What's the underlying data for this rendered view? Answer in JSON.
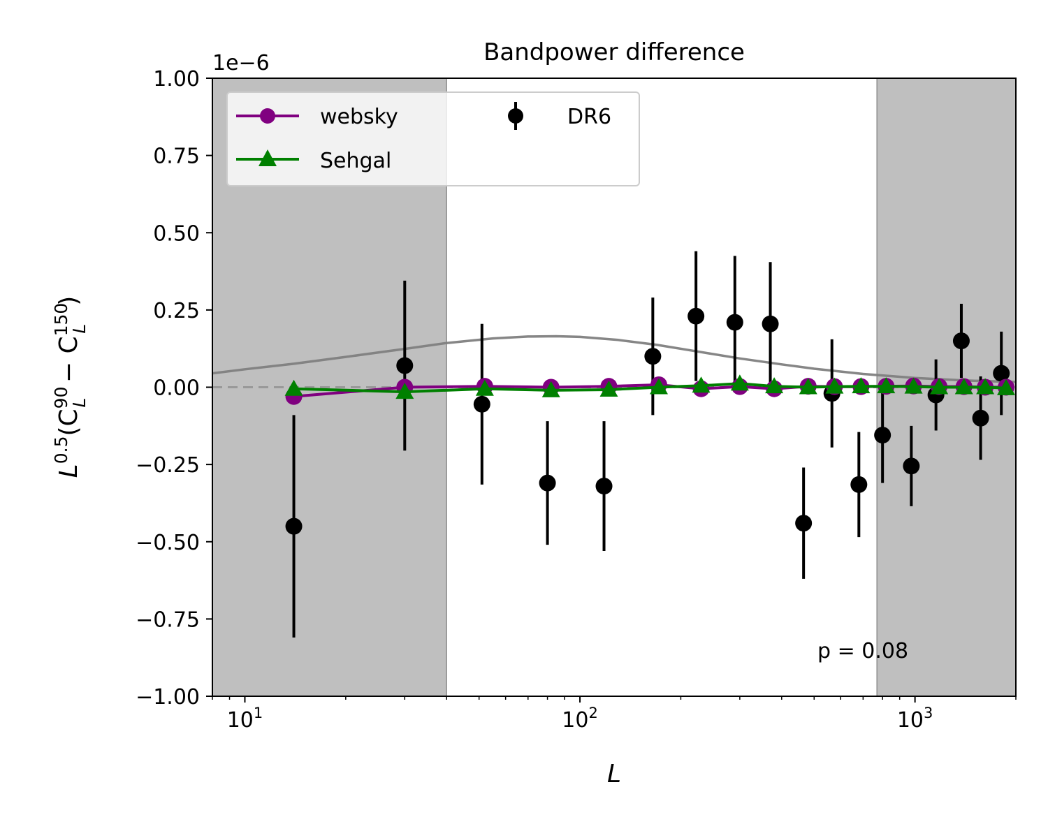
{
  "chart_data": {
    "type": "scatter",
    "title": "Bandpower difference",
    "xlabel": "L",
    "ylabel_base": "L",
    "ylabel_exp": "0.5",
    "ylabel_lhs": "(C",
    "ylabel_sup1": "90",
    "ylabel_sub": "L",
    "ylabel_minus": " − C",
    "ylabel_sup2": "150",
    "ylabel_close": ")",
    "y_offset_text": "1e−6",
    "x_scale": "log",
    "xlim": [
      8,
      2000
    ],
    "ylim": [
      -1.0,
      1.0
    ],
    "x_tick_base": "10",
    "x_ticks": [
      {
        "value": 10,
        "exp": "1"
      },
      {
        "value": 100,
        "exp": "2"
      },
      {
        "value": 1000,
        "exp": "3"
      }
    ],
    "y_ticks": [
      {
        "value": 1.0,
        "label": "1.00"
      },
      {
        "value": 0.75,
        "label": "0.75"
      },
      {
        "value": 0.5,
        "label": "0.50"
      },
      {
        "value": 0.25,
        "label": "0.25"
      },
      {
        "value": 0.0,
        "label": "0.00"
      },
      {
        "value": -0.25,
        "label": "−0.25"
      },
      {
        "value": -0.5,
        "label": "−0.50"
      },
      {
        "value": -0.75,
        "label": "−0.75"
      },
      {
        "value": -1.0,
        "label": "−1.00"
      }
    ],
    "excluded_ranges": [
      [
        8,
        40
      ],
      [
        770,
        2000
      ]
    ],
    "annotation": "p = 0.08",
    "legend_placement": "upper-left",
    "series": [
      {
        "name": "websky",
        "color": "#800080",
        "marker": "circle",
        "x": [
          14,
          30,
          52,
          82,
          122,
          172,
          230,
          300,
          380,
          480,
          575,
          690,
          820,
          990,
          1180,
          1400,
          1620,
          1870
        ],
        "y": [
          -0.03,
          0.0,
          0.003,
          0.0,
          0.003,
          0.008,
          -0.005,
          0.002,
          -0.005,
          0.003,
          0.002,
          0.002,
          0.003,
          0.004,
          0.002,
          0.002,
          0.0,
          0.0
        ]
      },
      {
        "name": "Sehgal",
        "color": "#008000",
        "marker": "triangle",
        "x": [
          14,
          30,
          52,
          82,
          122,
          172,
          230,
          300,
          380,
          480,
          575,
          690,
          820,
          990,
          1180,
          1400,
          1620,
          1870
        ],
        "y": [
          -0.005,
          -0.015,
          -0.005,
          -0.01,
          -0.008,
          0.0,
          0.005,
          0.012,
          0.003,
          0.0,
          0.002,
          0.003,
          0.003,
          0.002,
          0.0,
          0.0,
          0.0,
          -0.003
        ]
      },
      {
        "name": "DR6",
        "color": "#000000",
        "marker": "errorbar",
        "x": [
          14,
          30,
          51,
          80,
          118,
          165,
          222,
          290,
          370,
          465,
          565,
          680,
          800,
          975,
          1155,
          1375,
          1570,
          1810
        ],
        "y": [
          -0.45,
          0.07,
          -0.055,
          -0.31,
          -0.32,
          0.1,
          0.23,
          0.21,
          0.205,
          -0.44,
          -0.02,
          -0.315,
          -0.155,
          -0.255,
          -0.025,
          0.15,
          -0.1,
          0.045
        ],
        "yerr": [
          0.36,
          0.275,
          0.26,
          0.2,
          0.21,
          0.19,
          0.21,
          0.215,
          0.2,
          0.18,
          0.175,
          0.17,
          0.155,
          0.13,
          0.115,
          0.12,
          0.135,
          0.135
        ]
      },
      {
        "color": "#7f7f7f",
        "marker": "line",
        "x": [
          8,
          10,
          14,
          20,
          30,
          40,
          55,
          70,
          85,
          100,
          130,
          170,
          220,
          300,
          400,
          500,
          700,
          1000,
          1400,
          2000
        ],
        "y": [
          0.045,
          0.058,
          0.076,
          0.098,
          0.124,
          0.143,
          0.158,
          0.164,
          0.165,
          0.163,
          0.153,
          0.137,
          0.117,
          0.093,
          0.074,
          0.06,
          0.043,
          0.03,
          0.022,
          0.017
        ]
      }
    ]
  }
}
